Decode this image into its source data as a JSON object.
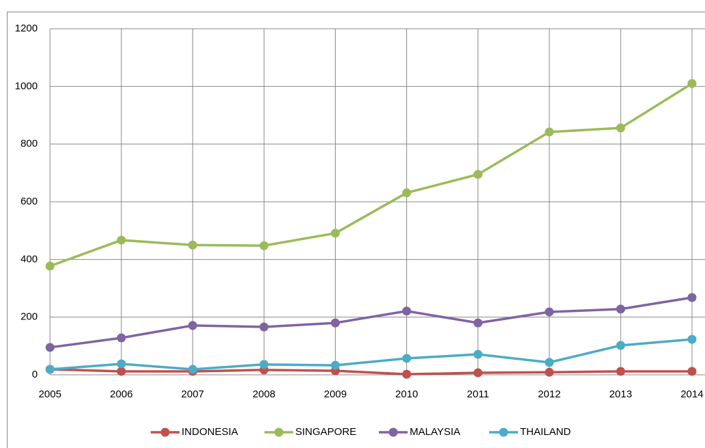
{
  "chart_data": {
    "type": "line",
    "x": [
      2005,
      2006,
      2007,
      2008,
      2009,
      2010,
      2011,
      2012,
      2013,
      2014
    ],
    "xlim": [
      2005,
      2014
    ],
    "xticks": [
      2005,
      2006,
      2007,
      2008,
      2009,
      2010,
      2011,
      2012,
      2013,
      2014
    ],
    "ylim": [
      0,
      1200
    ],
    "yticks": [
      0,
      200,
      400,
      600,
      800,
      1000,
      1200
    ],
    "grid": true,
    "legend": "bottom",
    "series": [
      {
        "name": "INDONESIA",
        "color": "#c0504d",
        "values": [
          19,
          12,
          12,
          17,
          14,
          2,
          7,
          9,
          12,
          12
        ]
      },
      {
        "name": "SINGAPORE",
        "color": "#9bbb59",
        "values": [
          377,
          467,
          450,
          448,
          491,
          631,
          695,
          842,
          856,
          1010
        ]
      },
      {
        "name": "MALAYSIA",
        "color": "#8064a2",
        "values": [
          95,
          128,
          171,
          166,
          180,
          221,
          180,
          218,
          228,
          268
        ]
      },
      {
        "name": "THAILAND",
        "color": "#4bacc6",
        "values": [
          19,
          38,
          19,
          36,
          33,
          57,
          71,
          43,
          102,
          123
        ]
      }
    ]
  }
}
